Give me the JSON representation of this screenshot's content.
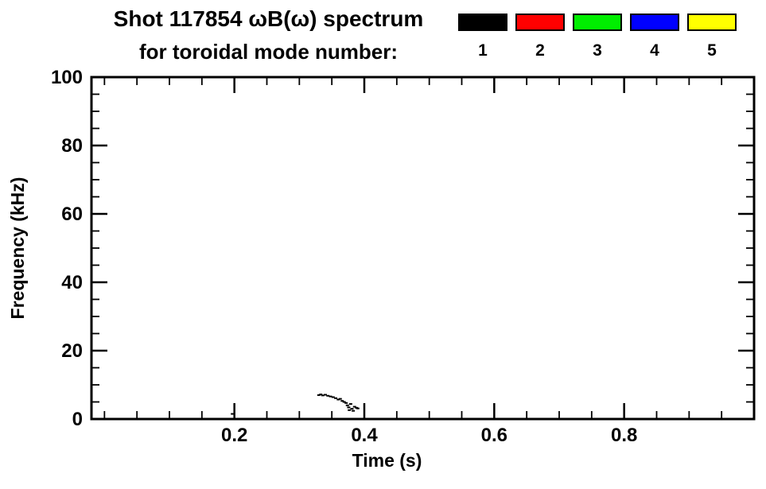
{
  "header": {
    "title_line1": "Shot 117854 ωB(ω) spectrum",
    "title_line2": "for toroidal mode number:"
  },
  "legend": {
    "items": [
      {
        "label": "1",
        "color_name": "black",
        "color": "#000000"
      },
      {
        "label": "2",
        "color_name": "red",
        "color": "#ff0000"
      },
      {
        "label": "3",
        "color_name": "green",
        "color": "#00ee00"
      },
      {
        "label": "4",
        "color_name": "blue",
        "color": "#0000ff"
      },
      {
        "label": "5",
        "color_name": "yellow",
        "color": "#ffff00"
      }
    ]
  },
  "chart_data": {
    "type": "scatter",
    "title": "Shot 117854 ωB(ω) spectrum for toroidal mode number: 1 2 3 4 5",
    "xlabel": "Time (s)",
    "ylabel": "Frequency (kHz)",
    "xlim": [
      -0.02,
      1.0
    ],
    "ylim": [
      0,
      100
    ],
    "x_ticks": [
      0.2,
      0.4,
      0.6,
      0.8
    ],
    "x_tick_labels": [
      "0.2",
      "0.4",
      "0.6",
      "0.8"
    ],
    "x_minor_step": 0.05,
    "y_ticks": [
      0,
      20,
      40,
      60,
      80,
      100
    ],
    "y_tick_labels": [
      "0",
      "20",
      "40",
      "60",
      "80",
      "100"
    ],
    "y_minor_step": 5,
    "grid": false,
    "legend_position": "top-right",
    "background": "#ffffff",
    "axis_color": "#000000",
    "series": [
      {
        "name": "n=1",
        "mode": 1,
        "color": "#000000",
        "points": [
          [
            0.197,
            1.5
          ],
          [
            0.33,
            7.0
          ],
          [
            0.333,
            7.2
          ],
          [
            0.336,
            6.9
          ],
          [
            0.34,
            7.1
          ],
          [
            0.344,
            6.8
          ],
          [
            0.348,
            6.6
          ],
          [
            0.352,
            6.4
          ],
          [
            0.356,
            6.1
          ],
          [
            0.36,
            5.7
          ],
          [
            0.363,
            5.9
          ],
          [
            0.366,
            5.3
          ],
          [
            0.369,
            5.0
          ],
          [
            0.372,
            4.7
          ],
          [
            0.374,
            4.0
          ],
          [
            0.376,
            3.4
          ],
          [
            0.377,
            2.6
          ],
          [
            0.379,
            4.4
          ],
          [
            0.381,
            3.0
          ],
          [
            0.383,
            2.4
          ],
          [
            0.385,
            3.6
          ],
          [
            0.388,
            3.3
          ],
          [
            0.39,
            3.1
          ]
        ]
      },
      {
        "name": "n=2",
        "mode": 2,
        "color": "#ff0000",
        "points": []
      },
      {
        "name": "n=3",
        "mode": 3,
        "color": "#00ee00",
        "points": []
      },
      {
        "name": "n=4",
        "mode": 4,
        "color": "#0000ff",
        "points": []
      },
      {
        "name": "n=5",
        "mode": 5,
        "color": "#ffff00",
        "points": []
      }
    ]
  }
}
